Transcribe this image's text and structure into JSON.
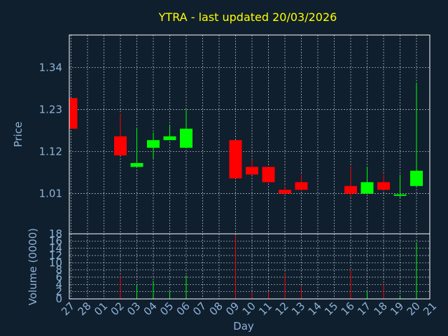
{
  "chart_data": [
    {
      "type": "candlestick",
      "title": "YTRA - last updated 20/03/2026",
      "ylabel": "Price",
      "ylim": [
        0.905,
        1.425
      ],
      "yticks": [
        1.01,
        1.12,
        1.23,
        1.34
      ],
      "ytick_labels": [
        "1.01",
        "1.12",
        "1.23",
        "1.34"
      ],
      "grid": true,
      "x": [
        "27",
        "28",
        "01",
        "02",
        "03",
        "04",
        "05",
        "06",
        "07",
        "08",
        "09",
        "10",
        "11",
        "12",
        "13",
        "14",
        "15",
        "16",
        "17",
        "18",
        "19",
        "20",
        "21"
      ],
      "candles": [
        {
          "day": "27",
          "open": 1.26,
          "close": 1.18,
          "high": 1.26,
          "low": 1.18
        },
        {
          "day": "02",
          "open": 1.16,
          "close": 1.11,
          "high": 1.22,
          "low": 1.11
        },
        {
          "day": "03",
          "open": 1.08,
          "close": 1.09,
          "high": 1.18,
          "low": 1.08
        },
        {
          "day": "04",
          "open": 1.13,
          "close": 1.15,
          "high": 1.17,
          "low": 1.1
        },
        {
          "day": "05",
          "open": 1.15,
          "close": 1.16,
          "high": 1.19,
          "low": 1.15
        },
        {
          "day": "06",
          "open": 1.13,
          "close": 1.18,
          "high": 1.23,
          "low": 1.13
        },
        {
          "day": "09",
          "open": 1.15,
          "close": 1.05,
          "high": 1.15,
          "low": 1.05
        },
        {
          "day": "10",
          "open": 1.08,
          "close": 1.06,
          "high": 1.1,
          "low": 1.06
        },
        {
          "day": "11",
          "open": 1.08,
          "close": 1.04,
          "high": 1.08,
          "low": 1.04
        },
        {
          "day": "12",
          "open": 1.02,
          "close": 1.01,
          "high": 1.03,
          "low": 1.01
        },
        {
          "day": "13",
          "open": 1.04,
          "close": 1.02,
          "high": 1.06,
          "low": 1.02
        },
        {
          "day": "16",
          "open": 1.03,
          "close": 1.01,
          "high": 1.08,
          "low": 1.0
        },
        {
          "day": "17",
          "open": 1.01,
          "close": 1.04,
          "high": 1.08,
          "low": 1.01
        },
        {
          "day": "18",
          "open": 1.04,
          "close": 1.02,
          "high": 1.06,
          "low": 1.02
        },
        {
          "day": "19",
          "open": 1.005,
          "close": 1.008,
          "high": 1.06,
          "low": 1.0
        },
        {
          "day": "20",
          "open": 1.03,
          "close": 1.07,
          "high": 1.3,
          "low": 1.03
        }
      ],
      "colors": {
        "up": "#00ff00",
        "down": "#ff0000"
      }
    },
    {
      "type": "bar",
      "xlabel": "Day",
      "ylabel": "Volume (0000)",
      "ylim": [
        0,
        18
      ],
      "yticks": [
        0,
        2,
        4,
        6,
        8,
        10,
        12,
        14,
        16,
        18
      ],
      "ytick_labels": [
        "0",
        "2",
        "4",
        "6",
        "8",
        "10",
        "12",
        "14",
        "16",
        "18"
      ],
      "grid": true,
      "volumes": [
        {
          "day": "02",
          "value": 6.5,
          "dir": "down"
        },
        {
          "day": "03",
          "value": 4.0,
          "dir": "up"
        },
        {
          "day": "04",
          "value": 5.0,
          "dir": "up"
        },
        {
          "day": "05",
          "value": 2.0,
          "dir": "up"
        },
        {
          "day": "06",
          "value": 6.5,
          "dir": "up"
        },
        {
          "day": "09",
          "value": 17.5,
          "dir": "down"
        },
        {
          "day": "10",
          "value": 2.0,
          "dir": "down"
        },
        {
          "day": "11",
          "value": 2.0,
          "dir": "down"
        },
        {
          "day": "12",
          "value": 7.0,
          "dir": "down"
        },
        {
          "day": "13",
          "value": 3.5,
          "dir": "down"
        },
        {
          "day": "16",
          "value": 8.0,
          "dir": "down"
        },
        {
          "day": "17",
          "value": 2.0,
          "dir": "up"
        },
        {
          "day": "18",
          "value": 4.0,
          "dir": "down"
        },
        {
          "day": "19",
          "value": 1.0,
          "dir": "up"
        },
        {
          "day": "20",
          "value": 15.5,
          "dir": "up"
        }
      ]
    }
  ]
}
